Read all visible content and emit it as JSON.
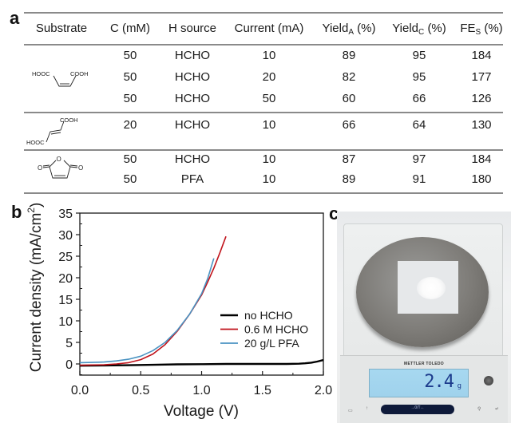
{
  "panels": {
    "a": "a",
    "b": "b",
    "c": "c"
  },
  "table": {
    "headers": {
      "substrate": "Substrate",
      "concentration": "C (mM)",
      "h_source": "H source",
      "current": "Current (mA)",
      "yield_a_main": "Yield",
      "yield_a_sub": "A",
      "yield_a_unit": " (%)",
      "yield_c_main": "Yield",
      "yield_c_sub": "C",
      "yield_c_unit": " (%)",
      "fe_main": "FE",
      "fe_sub": "S",
      "fe_unit": " (%)"
    },
    "substrates": {
      "maleic": {
        "name": "maleic acid",
        "left_group": "HOOC",
        "right_group": "COOH"
      },
      "fumaric": {
        "name": "fumaric acid",
        "top_group": "COOH",
        "bottom_group": "HOOC"
      },
      "anhydride": {
        "name": "maleic anhydride",
        "ring_o": "O",
        "left_o": "O",
        "right_o": "O"
      }
    },
    "rows": [
      {
        "c": "50",
        "h": "HCHO",
        "current": "10",
        "ya": "89",
        "yc": "95",
        "fe": "184"
      },
      {
        "c": "50",
        "h": "HCHO",
        "current": "20",
        "ya": "82",
        "yc": "95",
        "fe": "177"
      },
      {
        "c": "50",
        "h": "HCHO",
        "current": "50",
        "ya": "60",
        "yc": "66",
        "fe": "126"
      },
      {
        "c": "20",
        "h": "HCHO",
        "current": "10",
        "ya": "66",
        "yc": "64",
        "fe": "130"
      },
      {
        "c": "50",
        "h": "HCHO",
        "current": "10",
        "ya": "87",
        "yc": "97",
        "fe": "184"
      },
      {
        "c": "50",
        "h": "PFA",
        "current": "10",
        "ya": "89",
        "yc": "91",
        "fe": "180"
      }
    ]
  },
  "chart_data": {
    "type": "line",
    "title": "",
    "xlabel": "Voltage (V)",
    "ylabel_main": "Current density (mA/cm",
    "ylabel_sup": "2",
    "ylabel_close": ")",
    "xlim": [
      0.0,
      2.0
    ],
    "ylim": [
      -2.5,
      35
    ],
    "xticks": [
      "0.0",
      "0.5",
      "1.0",
      "1.5",
      "2.0"
    ],
    "xtick_values": [
      0.0,
      0.5,
      1.0,
      1.5,
      2.0
    ],
    "yticks": [
      "0",
      "5",
      "10",
      "15",
      "20",
      "25",
      "30",
      "35"
    ],
    "ytick_values": [
      0,
      5,
      10,
      15,
      20,
      25,
      30,
      35
    ],
    "grid": false,
    "legend_position": "center-right",
    "series": [
      {
        "name": "no HCHO",
        "color": "#000000",
        "x": [
          0.0,
          0.2,
          0.4,
          0.6,
          0.8,
          1.0,
          1.2,
          1.4,
          1.6,
          1.7,
          1.8,
          1.85,
          1.9,
          1.95,
          2.0
        ],
        "y": [
          -0.4,
          -0.35,
          -0.3,
          -0.2,
          -0.1,
          -0.05,
          0.0,
          0.0,
          0.0,
          0.0,
          0.05,
          0.15,
          0.3,
          0.55,
          0.9
        ]
      },
      {
        "name": "0.6 M HCHO",
        "color": "#c0131b",
        "x": [
          0.0,
          0.1,
          0.2,
          0.3,
          0.4,
          0.5,
          0.6,
          0.7,
          0.8,
          0.9,
          1.0,
          1.05,
          1.1,
          1.15,
          1.2
        ],
        "y": [
          -0.3,
          -0.25,
          -0.2,
          0.0,
          0.3,
          1.0,
          2.3,
          4.5,
          7.6,
          11.5,
          16.0,
          19.0,
          22.2,
          25.8,
          29.6
        ]
      },
      {
        "name": "20 g/L PFA",
        "color": "#4a93c2",
        "x": [
          0.0,
          0.1,
          0.2,
          0.3,
          0.4,
          0.5,
          0.6,
          0.7,
          0.8,
          0.9,
          1.0,
          1.05,
          1.1
        ],
        "y": [
          0.3,
          0.35,
          0.45,
          0.7,
          1.1,
          1.8,
          3.1,
          5.0,
          7.8,
          11.5,
          16.3,
          19.8,
          24.5
        ]
      }
    ]
  },
  "photo": {
    "description": "analytical balance weighing white powder",
    "brand": "METTLER TOLEDO",
    "reading_value": "2.4",
    "reading_unit": "g",
    "tare_label": "→0/T←"
  }
}
